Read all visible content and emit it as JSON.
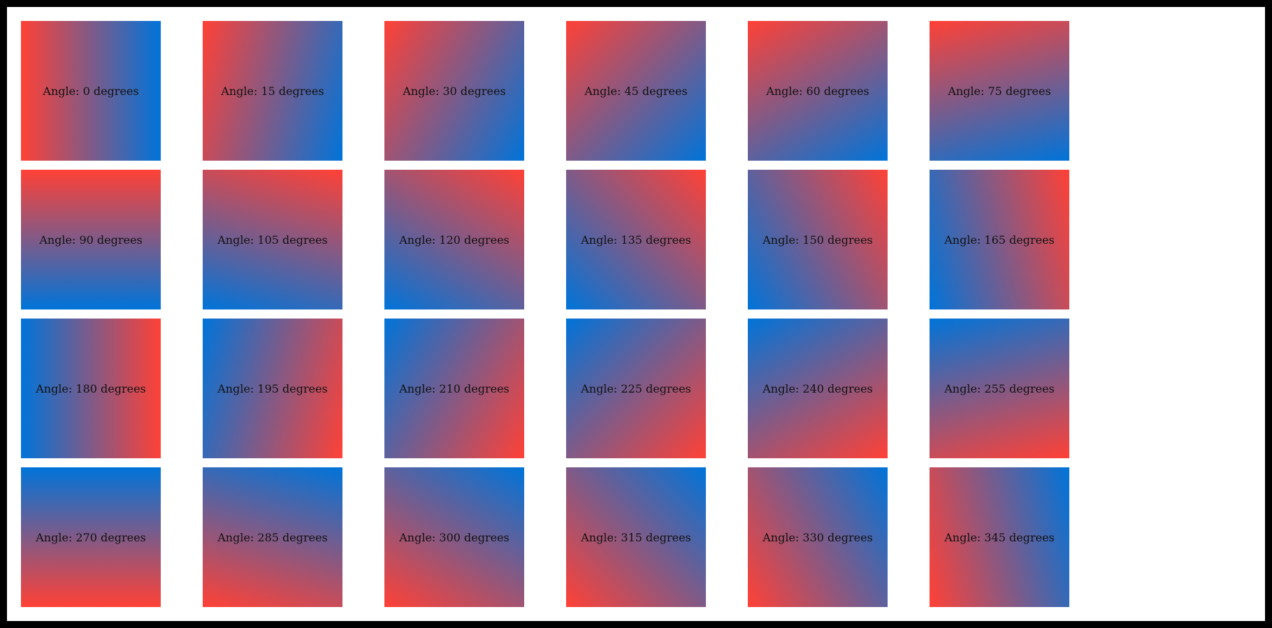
{
  "colors": {
    "start": "#ff4136",
    "end": "#0074d9"
  },
  "tiles": [
    {
      "angle": 0,
      "label": "Angle: 0 degrees"
    },
    {
      "angle": 15,
      "label": "Angle: 15 degrees"
    },
    {
      "angle": 30,
      "label": "Angle: 30 degrees"
    },
    {
      "angle": 45,
      "label": "Angle: 45 degrees"
    },
    {
      "angle": 60,
      "label": "Angle: 60 degrees"
    },
    {
      "angle": 75,
      "label": "Angle: 75 degrees"
    },
    {
      "angle": 90,
      "label": "Angle: 90 degrees"
    },
    {
      "angle": 105,
      "label": "Angle: 105 degrees"
    },
    {
      "angle": 120,
      "label": "Angle: 120 degrees"
    },
    {
      "angle": 135,
      "label": "Angle: 135 degrees"
    },
    {
      "angle": 150,
      "label": "Angle: 150 degrees"
    },
    {
      "angle": 165,
      "label": "Angle: 165 degrees"
    },
    {
      "angle": 180,
      "label": "Angle: 180 degrees"
    },
    {
      "angle": 195,
      "label": "Angle: 195 degrees"
    },
    {
      "angle": 210,
      "label": "Angle: 210 degrees"
    },
    {
      "angle": 225,
      "label": "Angle: 225 degrees"
    },
    {
      "angle": 240,
      "label": "Angle: 240 degrees"
    },
    {
      "angle": 255,
      "label": "Angle: 255 degrees"
    },
    {
      "angle": 270,
      "label": "Angle: 270 degrees"
    },
    {
      "angle": 285,
      "label": "Angle: 285 degrees"
    },
    {
      "angle": 300,
      "label": "Angle: 300 degrees"
    },
    {
      "angle": 315,
      "label": "Angle: 315 degrees"
    },
    {
      "angle": 330,
      "label": "Angle: 330 degrees"
    },
    {
      "angle": 345,
      "label": "Angle: 345 degrees"
    }
  ]
}
